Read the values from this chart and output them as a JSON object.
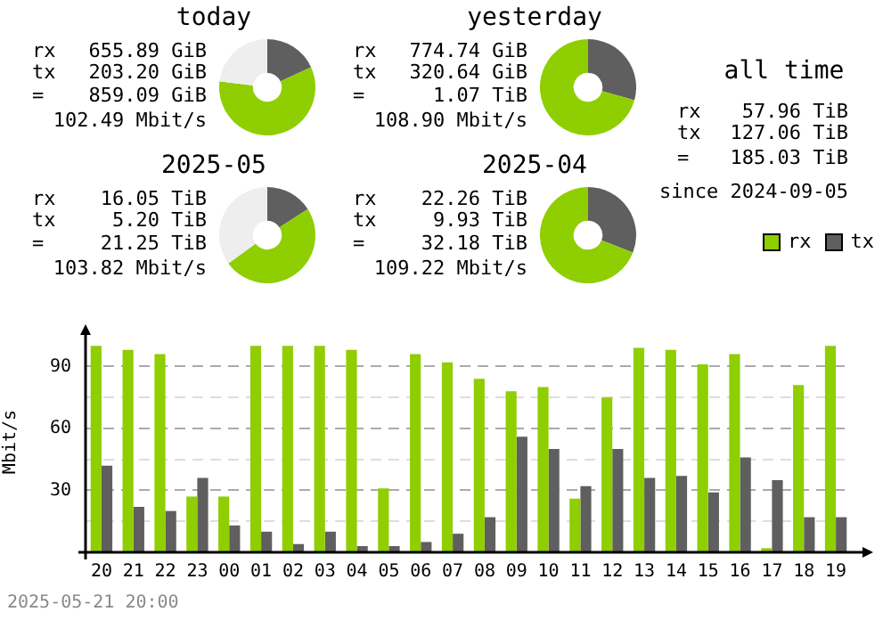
{
  "chart_data": [
    {
      "type": "donut",
      "title": "today",
      "categories": [
        null,
        null,
        null
      ],
      "values": [
        18.2,
        58.8,
        23
      ],
      "colors": [
        "#5f5f5f",
        "#8fce00",
        "#eeeeee"
      ],
      "annotations": [
        "rx 655.89 GiB",
        "tx 203.20 GiB",
        "= 859.09 GiB",
        "102.49 Mbit/s"
      ]
    },
    {
      "type": "donut",
      "title": "yesterday",
      "categories": [
        null,
        null
      ],
      "values": [
        29.3,
        70.7
      ],
      "colors": [
        "#5f5f5f",
        "#8fce00"
      ],
      "annotations": [
        "rx 774.74 GiB",
        "tx 320.64 GiB",
        "= 1.07 TiB",
        "108.90 Mbit/s"
      ]
    },
    {
      "type": "other",
      "title": "all time",
      "annotations": [
        "rx 57.96 TiB",
        "tx 127.06 TiB",
        "= 185.03 TiB",
        "since 2024-09-05"
      ]
    },
    {
      "type": "donut",
      "title": "2025-05",
      "categories": [
        null,
        null,
        null
      ],
      "values": [
        15.9,
        49.1,
        35
      ],
      "colors": [
        "#5f5f5f",
        "#8fce00",
        "#eeeeee"
      ],
      "annotations": [
        "rx 16.05 TiB",
        "tx 5.20 TiB",
        "= 21.25 TiB",
        "103.82 Mbit/s"
      ]
    },
    {
      "type": "donut",
      "title": "2025-04",
      "categories": [
        null,
        null
      ],
      "values": [
        30.9,
        69.1
      ],
      "colors": [
        "#5f5f5f",
        "#8fce00"
      ],
      "annotations": [
        "rx 22.26 TiB",
        "tx 9.93 TiB",
        "= 32.18 TiB",
        "109.22 Mbit/s"
      ]
    },
    {
      "type": "bar",
      "ylabel": "Mbit/s",
      "categories": [
        "20",
        "21",
        "22",
        "23",
        "00",
        "01",
        "02",
        "03",
        "04",
        "05",
        "06",
        "07",
        "08",
        "09",
        "10",
        "11",
        "12",
        "13",
        "14",
        "15",
        "16",
        "17",
        "18",
        "19"
      ],
      "series": [
        {
          "name": "rx",
          "color": "#8fce00",
          "values": [
            100,
            98,
            96,
            27,
            27,
            100,
            100,
            100,
            98,
            31,
            96,
            92,
            84,
            78,
            80,
            26,
            75,
            99,
            98,
            91,
            96,
            2,
            81,
            100
          ]
        },
        {
          "name": "tx",
          "color": "#5f5f5f",
          "values": [
            42,
            22,
            20,
            36,
            13,
            10,
            4,
            10,
            3,
            3,
            5,
            9,
            17,
            56,
            50,
            32,
            50,
            36,
            37,
            29,
            46,
            35,
            17,
            17
          ]
        }
      ],
      "ylim": [
        0,
        107
      ],
      "yticks": [
        {
          "value": 0,
          "label": null
        },
        {
          "value": 15,
          "label": null
        },
        30,
        {
          "value": 45,
          "label": null
        },
        60,
        {
          "value": 75,
          "label": null
        },
        90
      ],
      "grid": "y",
      "legend": "top right",
      "annotations": [
        "2025-05-21 20:00"
      ]
    }
  ]
}
